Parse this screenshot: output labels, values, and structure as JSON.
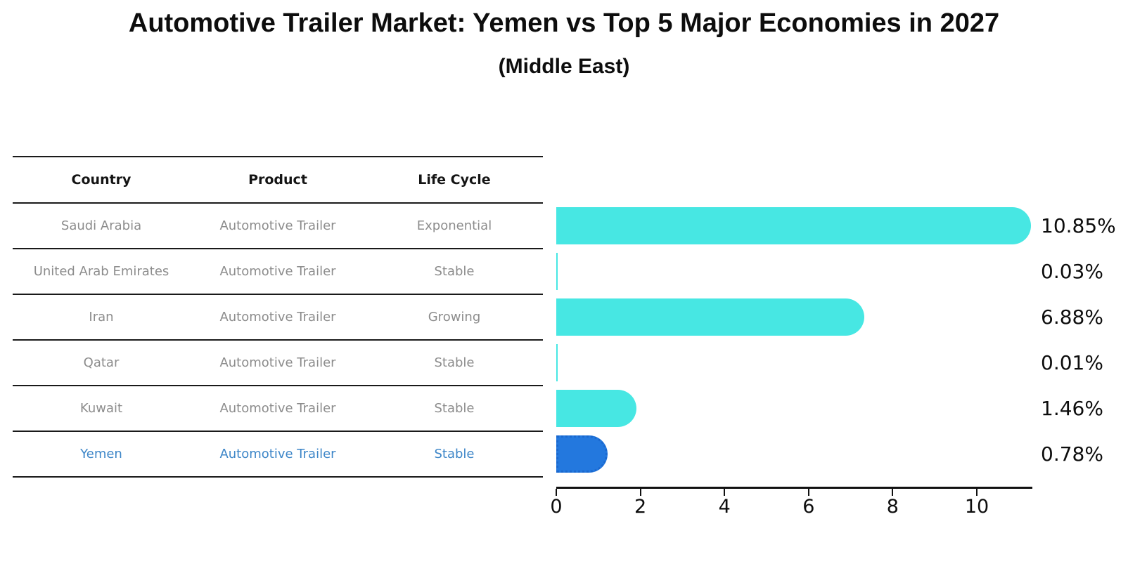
{
  "title": "Automotive Trailer Market: Yemen vs Top 5 Major Economies in 2027",
  "subtitle": "(Middle East)",
  "table": {
    "headers": [
      "Country",
      "Product",
      "Life Cycle"
    ],
    "rows": [
      {
        "country": "Saudi Arabia",
        "product": "Automotive Trailer",
        "life_cycle": "Exponential"
      },
      {
        "country": "United Arab Emirates",
        "product": "Automotive Trailer",
        "life_cycle": "Stable"
      },
      {
        "country": "Iran",
        "product": "Automotive Trailer",
        "life_cycle": "Growing"
      },
      {
        "country": "Qatar",
        "product": "Automotive Trailer",
        "life_cycle": "Stable"
      },
      {
        "country": "Kuwait",
        "product": "Automotive Trailer",
        "life_cycle": "Stable"
      },
      {
        "country": "Yemen",
        "product": "Automotive Trailer",
        "life_cycle": "Stable"
      }
    ],
    "highlight_row": "Yemen"
  },
  "chart_data": {
    "type": "bar",
    "orientation": "horizontal",
    "categories": [
      "Saudi Arabia",
      "United Arab Emirates",
      "Iran",
      "Qatar",
      "Kuwait",
      "Yemen"
    ],
    "values": [
      10.85,
      0.03,
      6.88,
      0.01,
      1.46,
      0.78
    ],
    "value_labels": [
      "10.85%",
      "0.03%",
      "6.88%",
      "0.01%",
      "1.46%",
      "0.78%"
    ],
    "unit": "%",
    "xticks": [
      0,
      2,
      4,
      6,
      8,
      10
    ],
    "xlim": [
      0,
      11.3
    ],
    "grid": false,
    "legend": "none",
    "highlight_index": 5,
    "bar_color": "#47E7E3",
    "highlight_color": "#2378DE",
    "highlight_border_color": "#1a68cf",
    "highlight_text_color": "#3d86c8"
  }
}
